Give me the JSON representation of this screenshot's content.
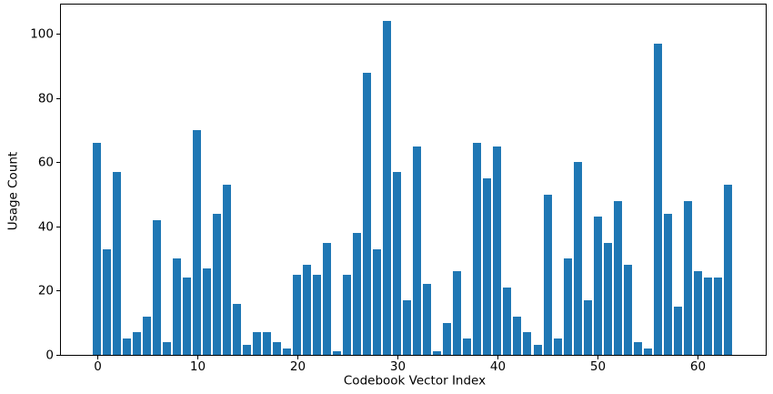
{
  "chart_data": {
    "type": "bar",
    "xlabel": "Codebook Vector Index",
    "ylabel": "Usage Count",
    "x": [
      0,
      1,
      2,
      3,
      4,
      5,
      6,
      7,
      8,
      9,
      10,
      11,
      12,
      13,
      14,
      15,
      16,
      17,
      18,
      19,
      20,
      21,
      22,
      23,
      24,
      25,
      26,
      27,
      28,
      29,
      30,
      31,
      32,
      33,
      34,
      35,
      36,
      37,
      38,
      39,
      40,
      41,
      42,
      43,
      44,
      45,
      46,
      47,
      48,
      49,
      50,
      51,
      52,
      53,
      54,
      55,
      56,
      57,
      58,
      59,
      60,
      61,
      62,
      63
    ],
    "values": [
      66,
      33,
      57,
      5,
      7,
      12,
      42,
      4,
      30,
      24,
      70,
      27,
      44,
      53,
      16,
      3,
      7,
      7,
      4,
      2,
      25,
      28,
      25,
      35,
      1,
      25,
      38,
      88,
      33,
      104,
      57,
      17,
      65,
      22,
      1,
      10,
      26,
      5,
      66,
      55,
      65,
      21,
      12,
      7,
      3,
      50,
      5,
      30,
      60,
      17,
      43,
      35,
      48,
      28,
      4,
      2,
      97,
      44,
      15,
      48,
      26,
      24,
      24,
      53
    ],
    "xticks": [
      0,
      10,
      20,
      30,
      40,
      50,
      60
    ],
    "yticks": [
      0,
      20,
      40,
      60,
      80,
      100
    ],
    "xlim": [
      -3.6,
      66.8
    ],
    "ylim": [
      0,
      109.2
    ],
    "bar_color": "#1f77b4",
    "grid": false,
    "legend": null
  }
}
